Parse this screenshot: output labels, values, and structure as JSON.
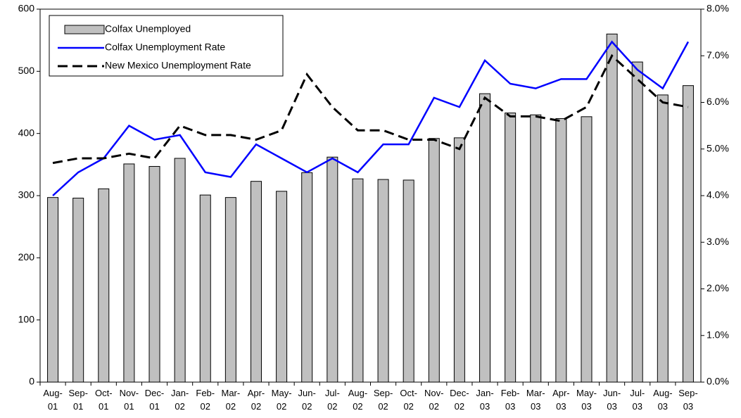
{
  "chart_data": {
    "type": "combo",
    "categories": [
      "Aug-01",
      "Sep-01",
      "Oct-01",
      "Nov-01",
      "Dec-01",
      "Jan-02",
      "Feb-02",
      "Mar-02",
      "Apr-02",
      "May-02",
      "Jun-02",
      "Jul-02",
      "Aug-02",
      "Sep-02",
      "Oct-02",
      "Nov-02",
      "Dec-02",
      "Jan-03",
      "Feb-03",
      "Mar-03",
      "Apr-03",
      "May-03",
      "Jun-03",
      "Jul-03",
      "Aug-03",
      "Sep-03"
    ],
    "series": [
      {
        "name": "Colfax Unemployed",
        "type": "bar",
        "color": "#c0c0c0",
        "axis": "y",
        "values": [
          297,
          296,
          311,
          351,
          347,
          360,
          301,
          297,
          323,
          307,
          337,
          362,
          327,
          326,
          325,
          392,
          393,
          464,
          433,
          430,
          424,
          427,
          560,
          515,
          462,
          477
        ]
      },
      {
        "name": "Colfax Unemployment Rate",
        "type": "line",
        "color": "#0000ff",
        "axis": "y2",
        "values": [
          4.0,
          4.5,
          4.8,
          5.5,
          5.2,
          5.3,
          4.5,
          4.4,
          5.1,
          4.8,
          4.5,
          4.8,
          4.5,
          5.1,
          5.1,
          6.1,
          5.9,
          6.9,
          6.4,
          6.3,
          6.5,
          6.5,
          7.3,
          6.7,
          6.3,
          7.3
        ]
      },
      {
        "name": "New Mexico Unemployment Rate",
        "type": "line",
        "dashed": true,
        "color": "#000000",
        "axis": "y2",
        "values": [
          4.7,
          4.8,
          4.8,
          4.9,
          4.8,
          5.5,
          5.3,
          5.3,
          5.2,
          5.4,
          6.6,
          5.9,
          5.4,
          5.4,
          5.2,
          5.2,
          5.0,
          6.1,
          5.7,
          5.7,
          5.6,
          5.9,
          7.0,
          6.5,
          6.0,
          5.9
        ]
      }
    ],
    "ylim": [
      0,
      600
    ],
    "yticks": [
      0,
      100,
      200,
      300,
      400,
      500,
      600
    ],
    "y2lim": [
      0,
      8
    ],
    "y2ticks": [
      {
        "value": 0,
        "label": "0.0%"
      },
      {
        "value": 1,
        "label": "1.0%"
      },
      {
        "value": 2,
        "label": "2.0%"
      },
      {
        "value": 3,
        "label": "3.0%"
      },
      {
        "value": 4,
        "label": "4.0%"
      },
      {
        "value": 5,
        "label": "5.0%"
      },
      {
        "value": 6,
        "label": "6.0%"
      },
      {
        "value": 7,
        "label": "7.0%"
      },
      {
        "value": 8,
        "label": "8.0%"
      }
    ],
    "legend": "top-left"
  }
}
